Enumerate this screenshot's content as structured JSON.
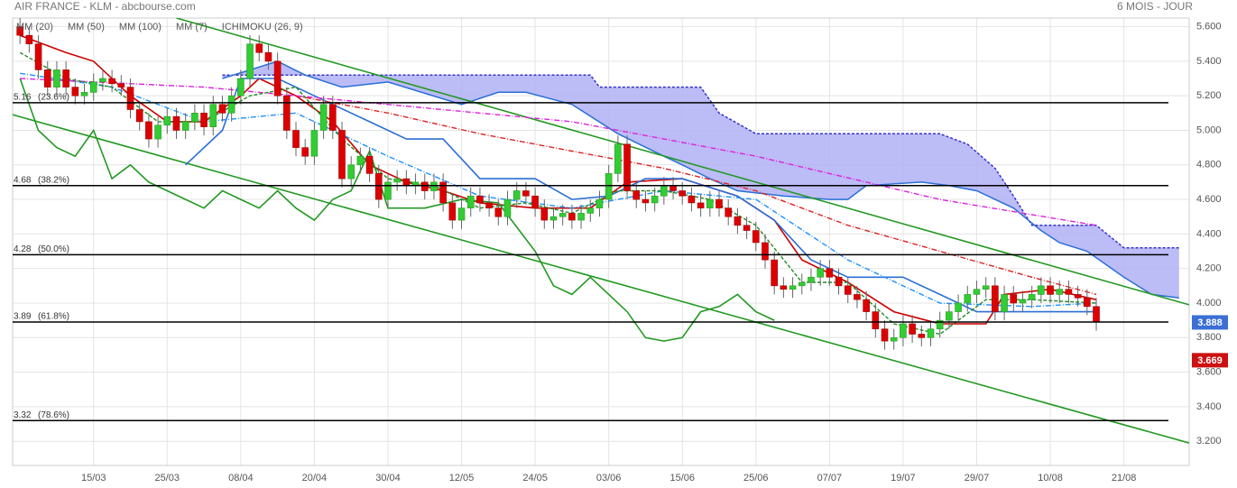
{
  "chart_data": {
    "type": "candlestick",
    "title": "AIR FRANCE - KLM - abcbourse.com",
    "subtitle": "6 MOIS - JOUR",
    "up_color": "#33cc33",
    "down_color": "#dd0000",
    "open": [
      5.6,
      5.55,
      5.5,
      5.35,
      5.25,
      5.35,
      5.25,
      5.2,
      5.22,
      5.28,
      5.3,
      5.27,
      5.25,
      5.12,
      5.05,
      4.95,
      5.03,
      5.08,
      5.0,
      5.05,
      5.1,
      5.02,
      5.15,
      5.1,
      5.2,
      5.3,
      5.5,
      5.45,
      5.4,
      5.2,
      5.0,
      4.9,
      4.85,
      5.0,
      5.15,
      5.0,
      4.72,
      4.8,
      4.85,
      4.75,
      4.6,
      4.7,
      4.72,
      4.68,
      4.7,
      4.65,
      4.7,
      4.58,
      4.48,
      4.55,
      4.62,
      4.58,
      4.55,
      4.5,
      4.6,
      4.65,
      4.62,
      4.55,
      4.48,
      4.5,
      4.52,
      4.48,
      4.52,
      4.55,
      4.6,
      4.75,
      4.92,
      4.65,
      4.6,
      4.58,
      4.62,
      4.68,
      4.65,
      4.62,
      4.58,
      4.55,
      4.6,
      4.55,
      4.5,
      4.45,
      4.42,
      4.35,
      4.25,
      4.1,
      4.08,
      4.1,
      4.12,
      4.15,
      4.2,
      4.15,
      4.1,
      4.05,
      4.02,
      3.95,
      3.85,
      3.78,
      3.8,
      3.88,
      3.82,
      3.8,
      3.85,
      3.9,
      3.95,
      4.0,
      4.05,
      4.08,
      4.1,
      3.95,
      4.05,
      4.0,
      4.02,
      4.05,
      4.1,
      4.05,
      4.08,
      4.05,
      4.03,
      3.98
    ],
    "high": [
      5.65,
      5.6,
      5.55,
      5.4,
      5.4,
      5.4,
      5.3,
      5.27,
      5.33,
      5.35,
      5.35,
      5.32,
      5.3,
      5.17,
      5.1,
      5.08,
      5.13,
      5.13,
      5.1,
      5.15,
      5.15,
      5.2,
      5.2,
      5.25,
      5.35,
      5.55,
      5.55,
      5.5,
      5.45,
      5.25,
      5.05,
      4.95,
      5.05,
      5.2,
      5.2,
      5.05,
      4.85,
      4.9,
      4.9,
      4.8,
      4.75,
      4.77,
      4.77,
      4.75,
      4.75,
      4.75,
      4.75,
      4.63,
      4.6,
      4.67,
      4.67,
      4.63,
      4.6,
      4.65,
      4.7,
      4.7,
      4.67,
      4.6,
      4.55,
      4.57,
      4.57,
      4.57,
      4.6,
      4.65,
      4.8,
      4.97,
      4.97,
      4.7,
      4.65,
      4.67,
      4.73,
      4.73,
      4.7,
      4.67,
      4.63,
      4.65,
      4.65,
      4.6,
      4.55,
      4.5,
      4.47,
      4.4,
      4.3,
      4.15,
      4.15,
      4.17,
      4.2,
      4.25,
      4.25,
      4.2,
      4.15,
      4.1,
      4.07,
      4.0,
      3.9,
      3.85,
      3.93,
      3.93,
      3.87,
      3.9,
      3.95,
      4.0,
      4.05,
      4.1,
      4.13,
      4.15,
      4.15,
      4.1,
      4.1,
      4.07,
      4.1,
      4.15,
      4.15,
      4.13,
      4.13,
      4.1,
      4.08,
      4.03
    ],
    "low": [
      5.5,
      5.45,
      5.3,
      5.2,
      5.2,
      5.2,
      5.15,
      5.15,
      5.17,
      5.23,
      5.22,
      5.2,
      5.07,
      5.0,
      4.9,
      4.9,
      4.98,
      4.95,
      4.95,
      5.0,
      4.97,
      4.97,
      5.05,
      5.05,
      5.15,
      5.25,
      5.4,
      5.35,
      5.15,
      4.95,
      4.85,
      4.8,
      4.8,
      4.95,
      4.95,
      4.67,
      4.67,
      4.75,
      4.7,
      4.55,
      4.55,
      4.65,
      4.63,
      4.63,
      4.6,
      4.6,
      4.53,
      4.43,
      4.43,
      4.5,
      4.53,
      4.5,
      4.45,
      4.45,
      4.55,
      4.57,
      4.5,
      4.43,
      4.43,
      4.45,
      4.43,
      4.43,
      4.47,
      4.5,
      4.55,
      4.7,
      4.6,
      4.55,
      4.53,
      4.53,
      4.57,
      4.6,
      4.57,
      4.53,
      4.5,
      4.5,
      4.5,
      4.45,
      4.4,
      4.37,
      4.3,
      4.2,
      4.05,
      4.03,
      4.03,
      4.05,
      4.07,
      4.1,
      4.1,
      4.05,
      4.0,
      3.97,
      3.9,
      3.8,
      3.73,
      3.73,
      3.75,
      3.77,
      3.75,
      3.75,
      3.8,
      3.85,
      3.9,
      3.95,
      4.0,
      4.03,
      3.9,
      3.9,
      3.95,
      3.95,
      3.97,
      4.0,
      4.0,
      4.0,
      4.0,
      3.98,
      3.93,
      3.84
    ],
    "close": [
      5.55,
      5.5,
      5.35,
      5.25,
      5.35,
      5.25,
      5.2,
      5.22,
      5.28,
      5.3,
      5.27,
      5.25,
      5.12,
      5.05,
      4.95,
      5.03,
      5.08,
      5.0,
      5.05,
      5.1,
      5.02,
      5.15,
      5.1,
      5.2,
      5.3,
      5.5,
      5.45,
      5.4,
      5.2,
      5.0,
      4.9,
      4.85,
      5.0,
      5.15,
      5.0,
      4.72,
      4.8,
      4.85,
      4.75,
      4.6,
      4.7,
      4.72,
      4.68,
      4.7,
      4.65,
      4.7,
      4.58,
      4.48,
      4.55,
      4.62,
      4.58,
      4.55,
      4.5,
      4.6,
      4.65,
      4.62,
      4.55,
      4.48,
      4.5,
      4.52,
      4.48,
      4.52,
      4.55,
      4.6,
      4.75,
      4.92,
      4.65,
      4.6,
      4.58,
      4.62,
      4.68,
      4.65,
      4.62,
      4.58,
      4.55,
      4.6,
      4.55,
      4.5,
      4.45,
      4.42,
      4.35,
      4.25,
      4.1,
      4.08,
      4.1,
      4.12,
      4.15,
      4.2,
      4.15,
      4.1,
      4.05,
      4.02,
      3.95,
      3.85,
      3.78,
      3.8,
      3.88,
      3.82,
      3.8,
      3.85,
      3.9,
      3.95,
      4.0,
      4.05,
      4.08,
      4.1,
      3.95,
      4.05,
      4.0,
      4.02,
      4.05,
      4.1,
      4.05,
      4.08,
      4.05,
      4.03,
      3.98,
      3.89
    ],
    "xlim": [
      -0.8,
      127.1
    ],
    "xticks": [
      {
        "value": 8,
        "label": "15/03"
      },
      {
        "value": 16,
        "label": "25/03"
      },
      {
        "value": 24,
        "label": "08/04"
      },
      {
        "value": 32,
        "label": "20/04"
      },
      {
        "value": 40,
        "label": "30/04"
      },
      {
        "value": 48,
        "label": "12/05"
      },
      {
        "value": 56,
        "label": "24/05"
      },
      {
        "value": 64,
        "label": "03/06"
      },
      {
        "value": 72,
        "label": "15/06"
      },
      {
        "value": 80,
        "label": "25/06"
      },
      {
        "value": 88,
        "label": "07/07"
      },
      {
        "value": 96,
        "label": "19/07"
      },
      {
        "value": 104,
        "label": "29/07"
      },
      {
        "value": 112,
        "label": "10/08"
      },
      {
        "value": 120,
        "label": "21/08"
      }
    ],
    "ylim": [
      3.06,
      5.65
    ],
    "yticks": [
      {
        "value": 5.6,
        "label": "5.600"
      },
      {
        "value": 5.4,
        "label": "5.400"
      },
      {
        "value": 5.2,
        "label": "5.200"
      },
      {
        "value": 5.0,
        "label": "5.000"
      },
      {
        "value": 4.8,
        "label": "4.800"
      },
      {
        "value": 4.6,
        "label": "4.600"
      },
      {
        "value": 4.4,
        "label": "4.400"
      },
      {
        "value": 4.2,
        "label": "4.200"
      },
      {
        "value": 4.0,
        "label": "4.000"
      },
      {
        "value": 3.8,
        "label": "3.800"
      },
      {
        "value": 3.6,
        "label": "3.600"
      },
      {
        "value": 3.4,
        "label": "3.400"
      },
      {
        "value": 3.2,
        "label": "3.200"
      }
    ],
    "grid": true,
    "moving_averages": [
      {
        "name": "MM (20)",
        "color": "#1e90ff",
        "dash": "6 2 1 2",
        "x": [
          0,
          10,
          20,
          30,
          40,
          50,
          60,
          70,
          80,
          90,
          100,
          110,
          117
        ],
        "values": [
          5.33,
          5.25,
          5.05,
          5.1,
          4.85,
          4.62,
          4.55,
          4.65,
          4.6,
          4.25,
          4.0,
          3.98,
          4.0
        ]
      },
      {
        "name": "MM (50)",
        "color": "#dd2222",
        "dash": "6 2 1 2",
        "x": [
          30,
          40,
          50,
          60,
          70,
          80,
          90,
          100,
          110,
          117
        ],
        "values": [
          5.2,
          5.1,
          4.98,
          4.88,
          4.78,
          4.65,
          4.45,
          4.3,
          4.15,
          4.05
        ]
      },
      {
        "name": "MM (100)",
        "color": "#dd22dd",
        "dash": "6 2 1 2",
        "x": [
          0,
          20,
          40,
          60,
          80,
          100,
          117
        ],
        "values": [
          5.3,
          5.25,
          5.15,
          5.05,
          4.85,
          4.6,
          4.45
        ]
      },
      {
        "name": "MM (7)",
        "color": "#228b22",
        "dash": "4 2",
        "x": [
          0,
          5,
          10,
          15,
          20,
          25,
          30,
          35,
          40,
          45,
          50,
          55,
          60,
          65,
          70,
          75,
          80,
          85,
          90,
          95,
          100,
          105,
          110,
          117
        ],
        "values": [
          5.45,
          5.3,
          5.25,
          5.05,
          5.05,
          5.2,
          5.25,
          4.95,
          4.72,
          4.68,
          4.55,
          4.58,
          4.52,
          4.65,
          4.65,
          4.6,
          4.45,
          4.12,
          4.12,
          3.88,
          3.82,
          4.02,
          4.02,
          4.0
        ]
      }
    ],
    "ichimoku": {
      "name": "ICHIMOKU (26, 9)",
      "color": "#2a6fd6",
      "lines": [
        {
          "color": "#cc0000",
          "x": [
            0,
            5,
            8,
            12,
            16,
            20,
            24,
            26,
            30,
            34,
            38,
            42,
            46,
            50,
            56,
            62,
            66,
            72,
            78,
            82,
            85,
            90,
            95,
            100,
            105,
            107,
            112,
            117
          ],
          "values": [
            5.55,
            5.45,
            5.4,
            5.2,
            5.05,
            5.05,
            5.2,
            5.3,
            5.2,
            5.05,
            4.8,
            4.7,
            4.65,
            4.58,
            4.55,
            4.55,
            4.7,
            4.72,
            4.62,
            4.48,
            4.25,
            4.12,
            3.95,
            3.88,
            3.88,
            4.05,
            4.08,
            4.02
          ]
        },
        {
          "color": "#2a6fd6",
          "x": [
            18,
            22,
            24,
            28,
            34,
            38,
            42,
            46,
            50,
            56,
            60,
            64,
            68,
            72,
            78,
            82,
            86,
            90,
            96,
            100,
            104,
            110,
            117
          ],
          "values": [
            4.8,
            5.0,
            5.3,
            5.3,
            5.15,
            5.05,
            4.95,
            4.95,
            4.72,
            4.72,
            4.6,
            4.62,
            4.72,
            4.72,
            4.62,
            4.48,
            4.25,
            4.15,
            4.15,
            4.05,
            3.95,
            3.95,
            3.95
          ]
        },
        {
          "color": "#229922",
          "x": [
            0,
            2,
            4,
            6,
            8,
            10,
            12,
            14,
            16,
            18,
            20,
            22,
            24,
            26,
            28,
            30,
            32,
            34,
            36,
            38,
            40,
            44,
            48,
            52,
            56,
            58,
            60,
            62,
            64,
            66,
            68,
            70,
            72,
            74,
            76,
            78,
            80,
            82
          ],
          "values": [
            5.3,
            5.0,
            4.9,
            4.85,
            5.0,
            4.72,
            4.8,
            4.7,
            4.65,
            4.6,
            4.55,
            4.65,
            4.6,
            4.55,
            4.65,
            4.55,
            4.48,
            4.6,
            4.65,
            4.88,
            4.55,
            4.55,
            4.6,
            4.58,
            4.3,
            4.1,
            4.05,
            4.15,
            4.05,
            3.95,
            3.8,
            3.78,
            3.8,
            3.95,
            3.98,
            4.05,
            3.95,
            3.9
          ]
        }
      ],
      "cloud": {
        "color": "#b0b0f5",
        "edge": "#3333cc",
        "upper": {
          "x": [
            22,
            30,
            40,
            55,
            62,
            63,
            68,
            74,
            76,
            80,
            100,
            103,
            106,
            108,
            110,
            117,
            120,
            126
          ],
          "values": [
            5.32,
            5.32,
            5.32,
            5.32,
            5.32,
            5.25,
            5.25,
            5.25,
            5.1,
            4.98,
            4.98,
            4.92,
            4.78,
            4.62,
            4.45,
            4.45,
            4.32,
            4.32
          ]
        },
        "lower": {
          "x": [
            22,
            28,
            31,
            35,
            40,
            48,
            52,
            55,
            60,
            65,
            70,
            72,
            75,
            78,
            83,
            88,
            90,
            92,
            98,
            101,
            104,
            108,
            111,
            113,
            116,
            120,
            123,
            126
          ],
          "values": [
            5.3,
            5.4,
            5.32,
            5.25,
            5.28,
            5.15,
            5.22,
            5.22,
            5.15,
            4.98,
            4.85,
            4.8,
            4.72,
            4.65,
            4.62,
            4.6,
            4.6,
            4.68,
            4.7,
            4.68,
            4.65,
            4.55,
            4.42,
            4.35,
            4.3,
            4.15,
            4.05,
            4.03
          ]
        }
      }
    },
    "trendlines": [
      {
        "color": "#229922",
        "x": [
          17,
          127.1
        ],
        "values": [
          5.65,
          3.99
        ]
      },
      {
        "color": "#229922",
        "x": [
          -0.8,
          127.1
        ],
        "values": [
          5.09,
          3.19
        ]
      }
    ],
    "fibonacci": [
      {
        "value": 5.16,
        "label": "(23.6%)"
      },
      {
        "value": 4.68,
        "label": "(38.2%)"
      },
      {
        "value": 4.28,
        "label": "(50.0%)"
      },
      {
        "value": 3.89,
        "label": "(61.8%)"
      },
      {
        "value": 3.32,
        "label": "(78.6%)"
      }
    ],
    "price_tags": [
      {
        "value": 3.888,
        "color": "#3b6fd6"
      },
      {
        "value": 3.669,
        "color": "#cc1111"
      }
    ]
  }
}
